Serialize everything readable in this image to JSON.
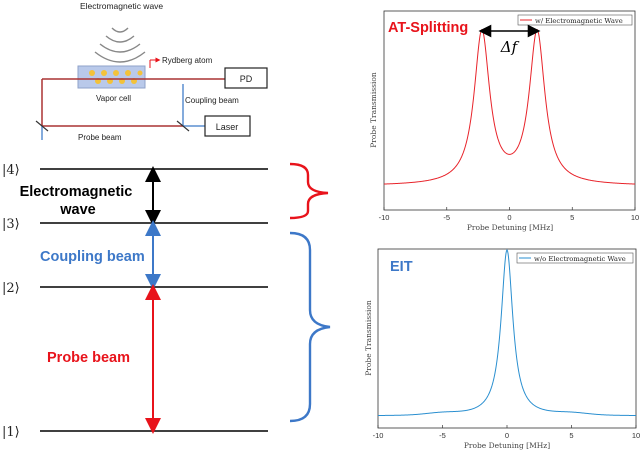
{
  "setup": {
    "em_wave_label": "Electromagnetic wave",
    "rydberg_label": "Rydberg atom",
    "vapor_cell_label": "Vapor cell",
    "pd_label": "PD",
    "coupling_label": "Coupling beam",
    "laser_label": "Laser",
    "probe_label": "Probe beam"
  },
  "levels": {
    "l4": "|4⟩",
    "l3": "|3⟩",
    "l2": "|2⟩",
    "l1": "|1⟩",
    "em_wave": "Electromagnetic wave",
    "coupling": "Coupling beam",
    "probe": "Probe beam"
  },
  "colors": {
    "red": "#e8131b",
    "blue": "#3d78c8",
    "at_line": "#e8232a",
    "eit_line": "#2a8fd0",
    "eit_title": "#3d78c8",
    "at_title": "#e8131b"
  },
  "chart_data": [
    {
      "type": "line",
      "title": "AT-Splitting",
      "legend": "w/ Electromagnetic Wave",
      "legend_position": "top-right",
      "xlabel": "Probe Detuning [MHz]",
      "ylabel": "Probe Transmission",
      "xlim": [
        -10,
        10
      ],
      "xticks": [
        "-10",
        "-5",
        "0",
        "5",
        "10"
      ],
      "annotation": "Δf",
      "peaks": [
        -2.2,
        2.2
      ],
      "grid": false
    },
    {
      "type": "line",
      "title": "EIT",
      "legend": "w/o Electromagnetic Wave",
      "legend_position": "top-right",
      "xlabel": "Probe Detuning [MHz]",
      "ylabel": "Probe Transmission",
      "xlim": [
        -10,
        10
      ],
      "xticks": [
        "-10",
        "-5",
        "0",
        "5",
        "10"
      ],
      "peaks": [
        0
      ],
      "grid": false
    }
  ]
}
